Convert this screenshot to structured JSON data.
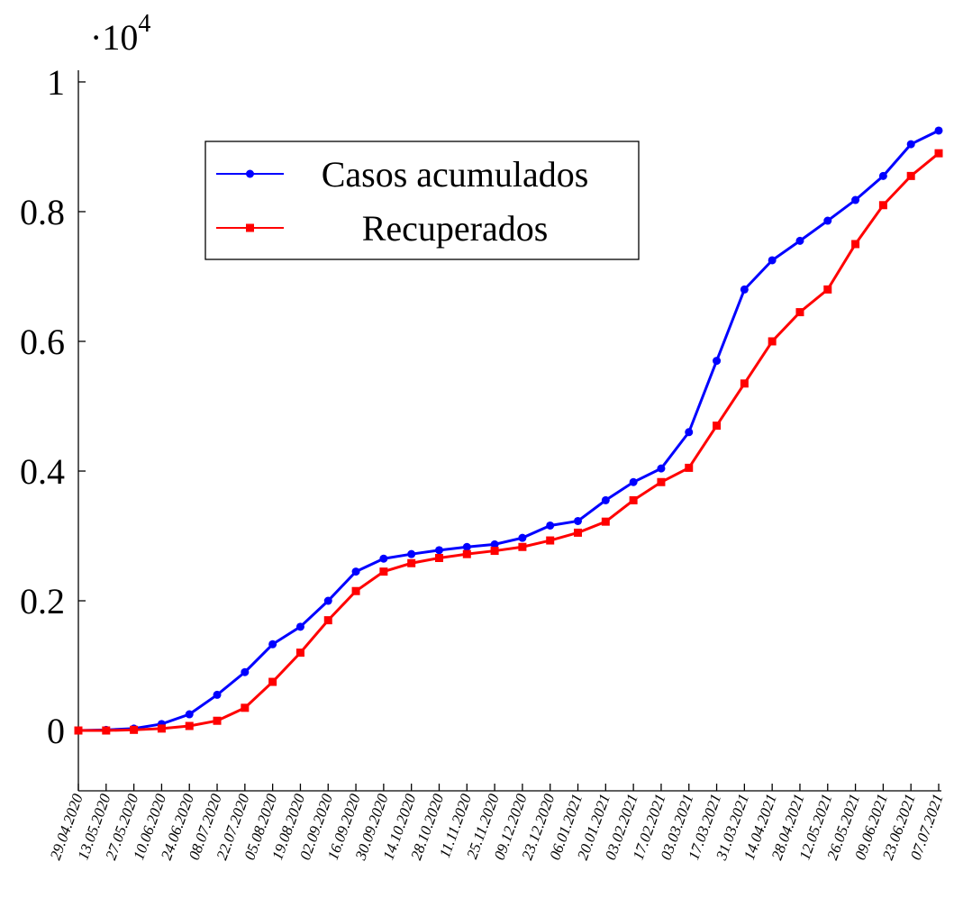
{
  "chart_data": {
    "type": "line",
    "y_multiplier_base": "·10",
    "y_multiplier_exp": "4",
    "categories": [
      "29.04.2020",
      "13.05.2020",
      "27.05.2020",
      "10.06.2020",
      "24.06.2020",
      "08.07.2020",
      "22.07.2020",
      "05.08.2020",
      "19.08.2020",
      "02.09.2020",
      "16.09.2020",
      "30.09.2020",
      "14.10.2020",
      "28.10.2020",
      "11.11.2020",
      "25.11.2020",
      "09.12.2020",
      "23.12.2020",
      "06.01.2021",
      "20.01.2021",
      "03.02.2021",
      "17.02.2021",
      "03.03.2021",
      "17.03.2021",
      "31.03.2021",
      "14.04.2021",
      "28.04.2021",
      "12.05.2021",
      "26.05.2021",
      "09.06.2021",
      "23.06.2021",
      "07.07.2021"
    ],
    "series": [
      {
        "name": "Casos acumulados",
        "color": "#0000ff",
        "marker": "circle",
        "values": [
          0,
          0.001,
          0.003,
          0.01,
          0.025,
          0.055,
          0.09,
          0.133,
          0.16,
          0.2,
          0.245,
          0.265,
          0.272,
          0.278,
          0.283,
          0.287,
          0.297,
          0.316,
          0.323,
          0.355,
          0.383,
          0.404,
          0.46,
          0.57,
          0.68,
          0.725,
          0.755,
          0.786,
          0.818,
          0.855,
          0.904,
          0.925
        ]
      },
      {
        "name": "Recuperados",
        "color": "#ff0000",
        "marker": "square",
        "values": [
          0,
          0,
          0.001,
          0.003,
          0.007,
          0.015,
          0.035,
          0.075,
          0.12,
          0.17,
          0.215,
          0.245,
          0.258,
          0.266,
          0.272,
          0.277,
          0.283,
          0.293,
          0.305,
          0.322,
          0.355,
          0.383,
          0.405,
          0.47,
          0.535,
          0.6,
          0.645,
          0.68,
          0.75,
          0.81,
          0.855,
          0.89
        ]
      }
    ],
    "ylim": [
      -0.093,
      1.018
    ],
    "yticks": [
      0,
      0.2,
      0.4,
      0.6,
      0.8,
      1
    ],
    "legend": "upper-left",
    "grid": false
  }
}
